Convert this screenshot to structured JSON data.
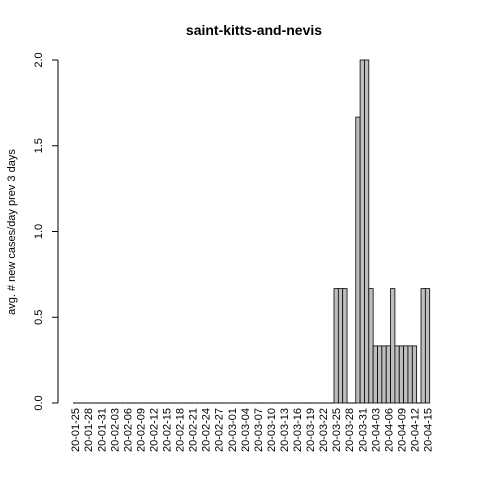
{
  "chart_data": {
    "type": "bar",
    "title": "saint-kitts-and-nevis",
    "xlabel": "",
    "ylabel": "avg. # new cases/day prev  3  days",
    "ylim": [
      0,
      2.0
    ],
    "yticks": [
      "0.0",
      "0.5",
      "1.0",
      "1.5",
      "2.0"
    ],
    "grid": false,
    "bar_color": "#bebebe",
    "xtick_labels": [
      "20-01-25",
      "20-01-28",
      "20-01-31",
      "20-02-03",
      "20-02-06",
      "20-02-09",
      "20-02-12",
      "20-02-15",
      "20-02-18",
      "20-02-21",
      "20-02-24",
      "20-02-27",
      "20-03-01",
      "20-03-04",
      "20-03-07",
      "20-03-10",
      "20-03-13",
      "20-03-16",
      "20-03-19",
      "20-03-22",
      "20-03-25",
      "20-03-28",
      "20-03-31",
      "20-04-03",
      "20-04-06",
      "20-04-09",
      "20-04-12",
      "20-04-15"
    ],
    "categories": [
      "20-01-25",
      "20-01-26",
      "20-01-27",
      "20-01-28",
      "20-01-29",
      "20-01-30",
      "20-01-31",
      "20-02-01",
      "20-02-02",
      "20-02-03",
      "20-02-04",
      "20-02-05",
      "20-02-06",
      "20-02-07",
      "20-02-08",
      "20-02-09",
      "20-02-10",
      "20-02-11",
      "20-02-12",
      "20-02-13",
      "20-02-14",
      "20-02-15",
      "20-02-16",
      "20-02-17",
      "20-02-18",
      "20-02-19",
      "20-02-20",
      "20-02-21",
      "20-02-22",
      "20-02-23",
      "20-02-24",
      "20-02-25",
      "20-02-26",
      "20-02-27",
      "20-02-28",
      "20-02-29",
      "20-03-01",
      "20-03-02",
      "20-03-03",
      "20-03-04",
      "20-03-05",
      "20-03-06",
      "20-03-07",
      "20-03-08",
      "20-03-09",
      "20-03-10",
      "20-03-11",
      "20-03-12",
      "20-03-13",
      "20-03-14",
      "20-03-15",
      "20-03-16",
      "20-03-17",
      "20-03-18",
      "20-03-19",
      "20-03-20",
      "20-03-21",
      "20-03-22",
      "20-03-23",
      "20-03-24",
      "20-03-25",
      "20-03-26",
      "20-03-27",
      "20-03-28",
      "20-03-29",
      "20-03-30",
      "20-03-31",
      "20-04-01",
      "20-04-02",
      "20-04-03",
      "20-04-04",
      "20-04-05",
      "20-04-06",
      "20-04-07",
      "20-04-08",
      "20-04-09",
      "20-04-10",
      "20-04-11",
      "20-04-12",
      "20-04-13",
      "20-04-14",
      "20-04-15"
    ],
    "values": [
      0,
      0,
      0,
      0,
      0,
      0,
      0,
      0,
      0,
      0,
      0,
      0,
      0,
      0,
      0,
      0,
      0,
      0,
      0,
      0,
      0,
      0,
      0,
      0,
      0,
      0,
      0,
      0,
      0,
      0,
      0,
      0,
      0,
      0,
      0,
      0,
      0,
      0,
      0,
      0,
      0,
      0,
      0,
      0,
      0,
      0,
      0,
      0,
      0,
      0,
      0,
      0,
      0,
      0,
      0,
      0,
      0,
      0,
      0,
      0,
      0.667,
      0.667,
      0.667,
      0,
      0,
      1.667,
      2.0,
      2.0,
      0.667,
      0.333,
      0.333,
      0.333,
      0.333,
      0.667,
      0.333,
      0.333,
      0.333,
      0.333,
      0.333,
      0,
      0.667,
      0.667
    ]
  }
}
